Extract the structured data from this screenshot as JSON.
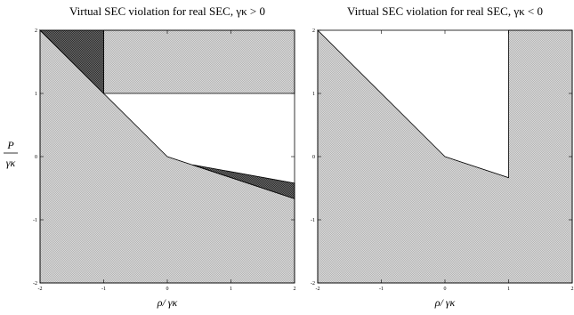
{
  "figure": {
    "ylabel_num": "P",
    "ylabel_den": "γκ"
  },
  "chart_data": [
    {
      "type": "area",
      "title": "Virtual SEC violation for real SEC, γκ > 0",
      "xlabel": "ρ/ γκ",
      "xlim": [
        -2,
        2
      ],
      "ylim": [
        -2,
        2
      ],
      "xticks": [
        -2,
        -1,
        0,
        1,
        2
      ],
      "yticks": [
        -2,
        -1,
        0,
        1,
        2
      ],
      "grid": false,
      "regions": [
        {
          "shade": "light",
          "polygon": [
            [
              -2,
              -2
            ],
            [
              2,
              -2
            ],
            [
              2,
              -0.667
            ],
            [
              0,
              0
            ],
            [
              -1,
              1
            ],
            [
              -2,
              2
            ]
          ]
        },
        {
          "shade": "light",
          "polygon": [
            [
              -1,
              1
            ],
            [
              2,
              1
            ],
            [
              2,
              2
            ],
            [
              -1,
              2
            ]
          ]
        },
        {
          "shade": "dark",
          "polygon": [
            [
              -2,
              2
            ],
            [
              -1,
              2
            ],
            [
              -1,
              1
            ]
          ]
        },
        {
          "shade": "dark",
          "polygon": [
            [
              0.4,
              -0.13
            ],
            [
              2,
              -0.42
            ],
            [
              2,
              -0.667
            ]
          ]
        }
      ]
    },
    {
      "type": "area",
      "title": "Virtual SEC violation for real SEC, γκ < 0",
      "xlabel": "ρ/ γκ",
      "xlim": [
        -2,
        2
      ],
      "ylim": [
        -2,
        2
      ],
      "xticks": [
        -2,
        -1,
        0,
        1,
        2
      ],
      "yticks": [
        -2,
        -1,
        0,
        1,
        2
      ],
      "grid": false,
      "regions": [
        {
          "shade": "light",
          "polygon": [
            [
              -2,
              -2
            ],
            [
              2,
              -2
            ],
            [
              2,
              2
            ],
            [
              1,
              2
            ],
            [
              1,
              -0.333
            ],
            [
              0,
              0
            ],
            [
              -2,
              2
            ]
          ]
        }
      ]
    }
  ],
  "colors": {
    "light_fill": "#c8c8c8",
    "dark_fill": "#555555",
    "outline": "#000000"
  }
}
